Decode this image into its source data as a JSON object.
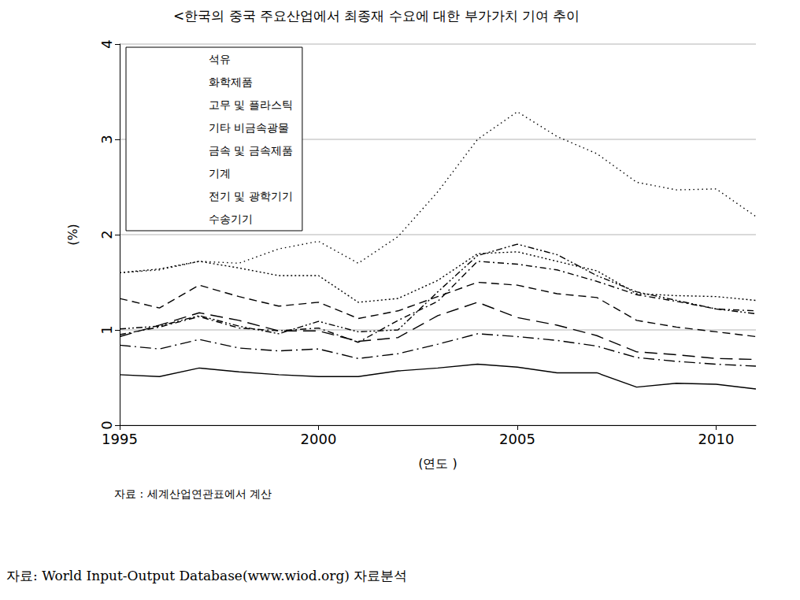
{
  "chart_data": {
    "type": "line",
    "title": "<한국의 중국 주요산업에서 최종재 수요에 대한 부가가치 기여 추이",
    "x_label": "(연도 )",
    "y_label": "(%)",
    "annotations": [
      "자료 : 세계산업연관표에서 계산",
      "자료: World Input-Output Database(www.wiod.org) 자료분석"
    ],
    "x": [
      1995,
      1996,
      1997,
      1998,
      1999,
      2000,
      2001,
      2002,
      2003,
      2004,
      2005,
      2006,
      2007,
      2008,
      2009,
      2010,
      2011
    ],
    "xlim": [
      1995,
      2011
    ],
    "xticks": [
      1995,
      2000,
      2005,
      2010
    ],
    "ylim": [
      0,
      4
    ],
    "yticks": [
      0,
      1,
      2,
      3,
      4
    ],
    "grid": true,
    "legend": "upper left",
    "series": [
      {
        "name": "석유",
        "color": "#000000",
        "line_style": "solid",
        "values": [
          0.53,
          0.51,
          0.6,
          0.56,
          0.53,
          0.51,
          0.51,
          0.57,
          0.6,
          0.64,
          0.61,
          0.55,
          0.55,
          0.4,
          0.44,
          0.43,
          0.38
        ]
      },
      {
        "name": "화학제품",
        "color": "#000000",
        "line_style": "dashed",
        "values": [
          1.33,
          1.23,
          1.47,
          1.35,
          1.25,
          1.29,
          1.12,
          1.2,
          1.35,
          1.5,
          1.47,
          1.38,
          1.34,
          1.1,
          1.03,
          0.98,
          0.93
        ]
      },
      {
        "name": "고무 및 플라스틱",
        "color": "#000000",
        "line_style": "dotted",
        "values": [
          1.6,
          1.64,
          1.72,
          1.65,
          1.57,
          1.57,
          1.29,
          1.33,
          1.52,
          1.8,
          1.82,
          1.72,
          1.62,
          1.38,
          1.36,
          1.35,
          1.31
        ]
      },
      {
        "name": "기타 비금속광물",
        "color": "#000000",
        "line_style": "longdashdot",
        "values": [
          0.84,
          0.8,
          0.9,
          0.81,
          0.78,
          0.8,
          0.7,
          0.75,
          0.85,
          0.96,
          0.93,
          0.89,
          0.83,
          0.71,
          0.67,
          0.64,
          0.62
        ]
      },
      {
        "name": "금속 및 금속제품",
        "color": "#000000",
        "line_style": "longdashed",
        "values": [
          0.93,
          1.05,
          1.18,
          1.1,
          0.99,
          0.99,
          0.88,
          0.92,
          1.15,
          1.29,
          1.13,
          1.05,
          0.94,
          0.77,
          0.74,
          0.7,
          0.69
        ]
      },
      {
        "name": "기계",
        "color": "#000000",
        "line_style": "dashdot",
        "values": [
          0.95,
          1.03,
          1.14,
          1.02,
          0.99,
          1.02,
          0.87,
          1.1,
          1.3,
          1.72,
          1.69,
          1.63,
          1.51,
          1.37,
          1.3,
          1.22,
          1.2
        ]
      },
      {
        "name": "전기 및 광학기기",
        "color": "#000000",
        "line_style": "loosedotted",
        "values": [
          1.6,
          1.63,
          1.72,
          1.7,
          1.85,
          1.93,
          1.7,
          1.98,
          2.45,
          3.0,
          3.29,
          3.03,
          2.85,
          2.55,
          2.47,
          2.48,
          2.19
        ]
      },
      {
        "name": "수송기기",
        "color": "#000000",
        "line_style": "dashdotdot",
        "values": [
          1.01,
          1.04,
          1.15,
          1.04,
          0.96,
          1.09,
          0.98,
          1.0,
          1.4,
          1.78,
          1.9,
          1.79,
          1.57,
          1.4,
          1.31,
          1.22,
          1.17
        ]
      }
    ]
  }
}
